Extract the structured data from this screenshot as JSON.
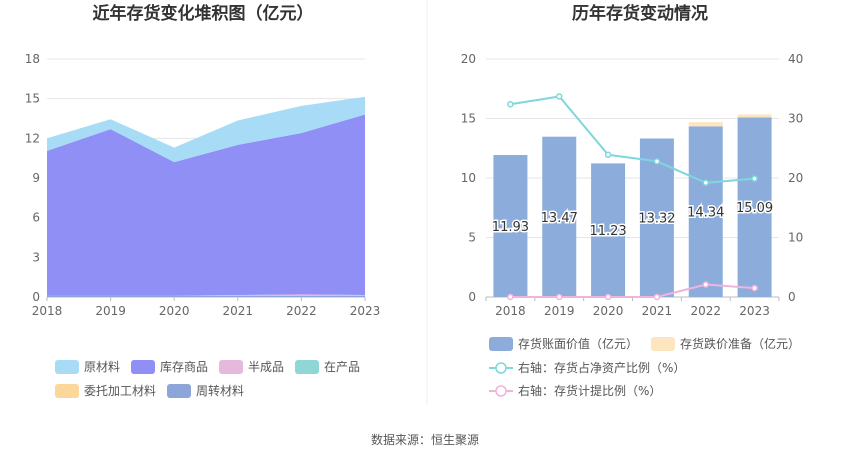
{
  "source_text": "数据来源：恒生聚源",
  "chart_data": [
    {
      "type": "area",
      "title": "近年存货变化堆积图（亿元）",
      "x": [
        "2018",
        "2019",
        "2020",
        "2021",
        "2022",
        "2023"
      ],
      "ylim": [
        0,
        18
      ],
      "yticks": [
        0,
        3,
        6,
        9,
        12,
        15,
        18
      ],
      "grid": true,
      "legend_position": "bottom",
      "series": [
        {
          "name": "原材料",
          "color": "#a8dcf6",
          "values": [
            0.95,
            0.75,
            1.1,
            1.85,
            2.05,
            1.35
          ]
        },
        {
          "name": "库存商品",
          "color": "#8f8ff5",
          "values": [
            10.95,
            12.6,
            10.1,
            11.35,
            12.2,
            13.65
          ]
        },
        {
          "name": "半成品",
          "color": "#e6b8dc",
          "values": [
            0.0,
            0.0,
            0.0,
            0.05,
            0.1,
            0.05
          ]
        },
        {
          "name": "在产品",
          "color": "#8fd6d6",
          "values": [
            0.0,
            0.0,
            0.0,
            0.0,
            0.0,
            0.0
          ]
        },
        {
          "name": "委托加工材料",
          "color": "#fbd79a",
          "values": [
            0.0,
            0.0,
            0.0,
            0.0,
            0.0,
            0.0
          ]
        },
        {
          "name": "周转材料",
          "color": "#8ca6d9",
          "values": [
            0.1,
            0.1,
            0.1,
            0.1,
            0.1,
            0.1
          ]
        }
      ]
    },
    {
      "type": "bar",
      "title": "历年存货变动情况",
      "categories": [
        "2018",
        "2019",
        "2020",
        "2021",
        "2022",
        "2023"
      ],
      "ylim": [
        0,
        20
      ],
      "yticks": [
        0,
        5,
        10,
        15,
        20
      ],
      "y2lim": [
        0,
        40
      ],
      "y2ticks": [
        0,
        10,
        20,
        30,
        40
      ],
      "grid": true,
      "legend_position": "bottom",
      "bars": [
        {
          "name": "存货账面价值（亿元）",
          "color": "#8caddb",
          "values": [
            11.93,
            13.47,
            11.23,
            13.32,
            14.34,
            15.09
          ],
          "labels": [
            "11.93",
            "13.47",
            "11.23",
            "13.32",
            "14.34",
            "15.09"
          ]
        },
        {
          "name": "存货跌价准备（亿元）",
          "color": "#fce5bf",
          "values": [
            0.0,
            0.0,
            0.0,
            0.0,
            0.35,
            0.25
          ]
        }
      ],
      "lines": [
        {
          "name": "右轴：存货占净资产比例（%）",
          "color": "#7fd6dc",
          "axis": "right",
          "values": [
            32.4,
            33.7,
            23.9,
            22.8,
            19.2,
            19.9
          ]
        },
        {
          "name": "右轴：存货计提比例（%）",
          "color": "#f0b3dc",
          "axis": "right",
          "values": [
            0.0,
            0.0,
            0.0,
            0.0,
            2.1,
            1.5
          ]
        }
      ]
    }
  ]
}
